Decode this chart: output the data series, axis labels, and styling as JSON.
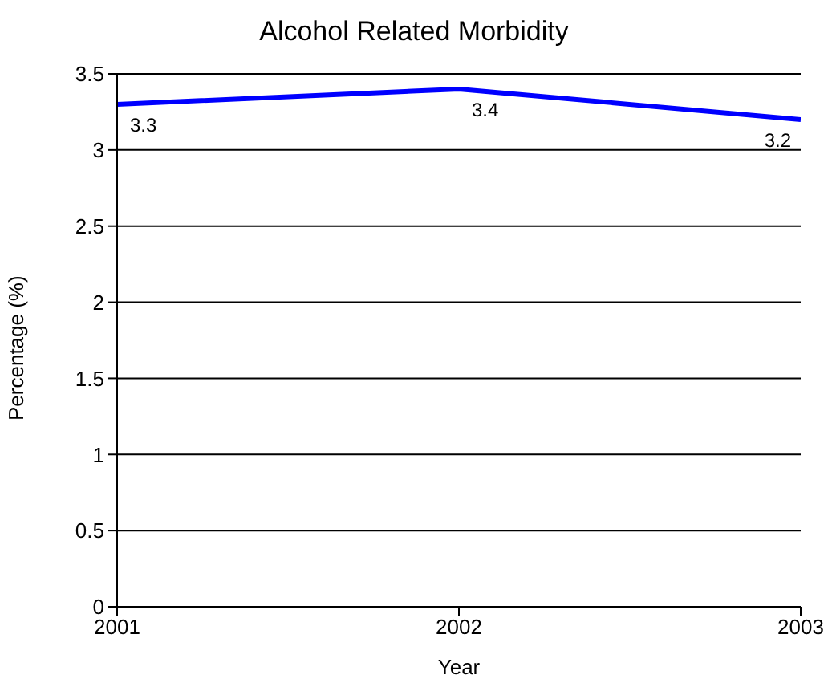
{
  "chart_data": {
    "type": "line",
    "title": "Alcohol Related Morbidity",
    "xlabel": "Year",
    "ylabel": "Percentage (%)",
    "x": [
      2001,
      2002,
      2003
    ],
    "series": [
      {
        "color": "#0000ff",
        "values": [
          3.3,
          3.4,
          3.2
        ]
      }
    ],
    "xlim": [
      2001,
      2003
    ],
    "xticks": [
      2001,
      2002,
      2003
    ],
    "ylim": [
      0,
      3.5
    ],
    "yticks": [
      0,
      0.5,
      1,
      1.5,
      2,
      2.5,
      3,
      3.5
    ],
    "grid": "y",
    "marker": "none",
    "line_style": "solid",
    "data_labels": true,
    "legend": false
  }
}
